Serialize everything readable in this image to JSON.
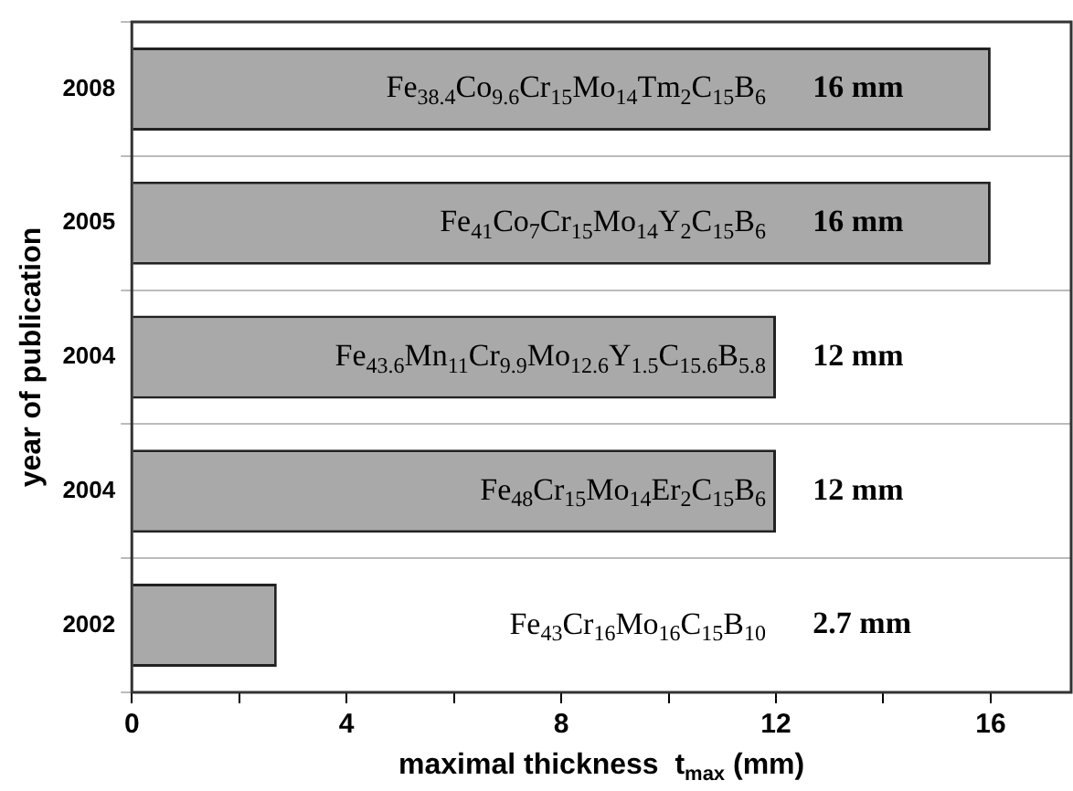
{
  "chart_data": {
    "type": "bar",
    "orientation": "horizontal",
    "xlabel": "maximal thickness  t$_{max}$ (mm)",
    "ylabel": "year of publication",
    "categories": [
      "2008",
      "2005",
      "2004",
      "2004",
      "2002"
    ],
    "values": [
      16,
      16,
      12,
      12,
      2.7
    ],
    "color": "#a9a9a9",
    "value_labels": [
      "16 mm",
      "16 mm",
      "12 mm",
      "12 mm",
      "2.7 mm"
    ],
    "annotations": [
      "Fe$_{38.4}$Co$_{9.6}$Cr$_{15}$Mo$_{14}$Tm$_{2}$C$_{15}$B$_{6}$",
      "Fe$_{41}$Co$_{7}$Cr$_{15}$Mo$_{14}$Y$_{2}$C$_{15}$B$_{6}$",
      "Fe$_{43.6}$Mn$_{11}$Cr$_{9.9}$Mo$_{12.6}$Y$_{1.5}$C$_{15.6}$B$_{5.8}$",
      "Fe$_{48}$Cr$_{15}$Mo$_{14}$Er$_{2}$C$_{15}$B$_{6}$",
      "Fe$_{43}$Cr$_{16}$Mo$_{16}$C$_{15}$B$_{10}$"
    ],
    "xlim": [
      0,
      17.5
    ],
    "xticks": [
      0,
      {
        "value": 2,
        "label": null
      },
      4,
      {
        "value": 6,
        "label": null
      },
      8,
      {
        "value": 10,
        "label": null
      },
      12,
      {
        "value": 14,
        "label": null
      },
      16
    ],
    "grid": "y"
  }
}
